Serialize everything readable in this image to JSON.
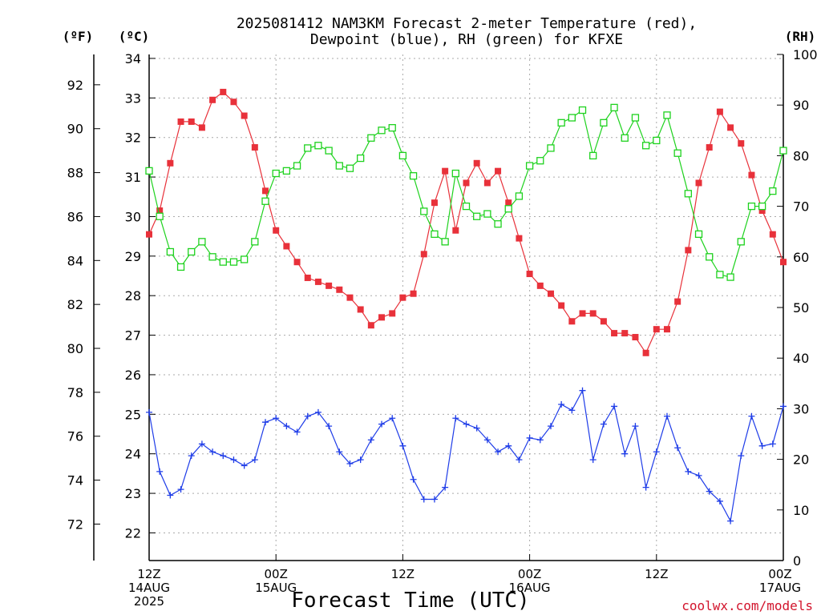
{
  "chart_data": {
    "type": "line",
    "title_lines": [
      "2025081412 NAM3KM Forecast 2-meter Temperature (red),",
      "Dewpoint (blue), RH (green) for KFXE"
    ],
    "unit_labels": {
      "fahrenheit": "(ºF)",
      "celsius": "(ºC)",
      "rh": "(RH)"
    },
    "xlabel": "Forecast Time (UTC)",
    "credit": "coolwx.com/models",
    "x_hours_range": [
      0,
      60
    ],
    "x_ticks": [
      {
        "hour": 0,
        "lines": [
          "12Z",
          "14AUG",
          "2025"
        ]
      },
      {
        "hour": 12,
        "lines": [
          "00Z",
          "15AUG"
        ]
      },
      {
        "hour": 24,
        "lines": [
          "12Z"
        ]
      },
      {
        "hour": 36,
        "lines": [
          "00Z",
          "16AUG"
        ]
      },
      {
        "hour": 48,
        "lines": [
          "12Z"
        ]
      },
      {
        "hour": 60,
        "lines": [
          "00Z",
          "17AUG"
        ]
      }
    ],
    "celsius_axis": {
      "range": [
        21.3,
        34.1
      ],
      "ticks": [
        22,
        23,
        24,
        25,
        26,
        27,
        28,
        29,
        30,
        31,
        32,
        33,
        34
      ]
    },
    "fahrenheit_axis": {
      "ticks": [
        72,
        74,
        76,
        78,
        80,
        82,
        84,
        86,
        88,
        90,
        92
      ]
    },
    "rh_axis": {
      "range": [
        0,
        100
      ],
      "ticks": [
        0,
        10,
        20,
        30,
        40,
        50,
        60,
        70,
        80,
        90,
        100
      ]
    },
    "grid": true,
    "series": [
      {
        "name": "Temperature",
        "color": "#e8313a",
        "marker": "filled-square",
        "axis": "celsius",
        "values": [
          29.55,
          30.15,
          31.35,
          32.4,
          32.4,
          32.25,
          32.95,
          33.15,
          32.9,
          32.55,
          31.75,
          30.65,
          29.65,
          29.25,
          28.85,
          28.45,
          28.35,
          28.25,
          28.15,
          27.95,
          27.65,
          27.25,
          27.45,
          27.55,
          27.95,
          28.05,
          29.05,
          30.35,
          31.15,
          29.65,
          30.85,
          31.35,
          30.85,
          31.15,
          30.35,
          29.45,
          28.55,
          28.25,
          28.05,
          27.75,
          27.35,
          27.55,
          27.55,
          27.35,
          27.05,
          27.05,
          26.95,
          26.55,
          27.15,
          27.15,
          27.85,
          29.15,
          30.85,
          31.75,
          32.65,
          32.25,
          31.85,
          31.05,
          30.15,
          29.55,
          28.85
        ]
      },
      {
        "name": "Dewpoint",
        "color": "#1e3ce8",
        "marker": "plus",
        "axis": "celsius",
        "values": [
          25.05,
          23.55,
          22.95,
          23.1,
          23.95,
          24.25,
          24.05,
          23.95,
          23.85,
          23.7,
          23.85,
          24.8,
          24.9,
          24.7,
          24.55,
          24.95,
          25.05,
          24.7,
          24.05,
          23.75,
          23.85,
          24.35,
          24.75,
          24.9,
          24.2,
          23.35,
          22.85,
          22.85,
          23.15,
          24.9,
          24.75,
          24.65,
          24.35,
          24.05,
          24.2,
          23.85,
          24.4,
          24.35,
          24.7,
          25.25,
          25.1,
          25.6,
          23.85,
          24.75,
          25.2,
          24.0,
          24.7,
          23.15,
          24.05,
          24.95,
          24.15,
          23.55,
          23.45,
          23.05,
          22.8,
          22.3,
          23.95,
          24.95,
          24.2,
          24.25,
          25.2
        ]
      },
      {
        "name": "RH",
        "color": "#1ed21e",
        "marker": "open-square",
        "axis": "rh",
        "values": [
          77,
          68,
          61,
          58,
          61,
          63,
          60,
          59,
          59,
          59.5,
          63,
          71,
          76.5,
          77,
          78,
          81.5,
          82,
          81,
          78,
          77.5,
          79.5,
          83.5,
          85,
          85.5,
          80,
          76,
          69,
          64.5,
          63,
          76.5,
          70,
          68,
          68.5,
          66.5,
          69.5,
          72,
          78,
          79,
          81.5,
          86.5,
          87.5,
          89,
          80,
          86.5,
          89.5,
          83.5,
          87.5,
          82,
          83,
          88,
          80.5,
          72.5,
          64.5,
          60,
          56.5,
          56,
          63,
          70,
          70,
          73,
          81
        ]
      }
    ]
  }
}
